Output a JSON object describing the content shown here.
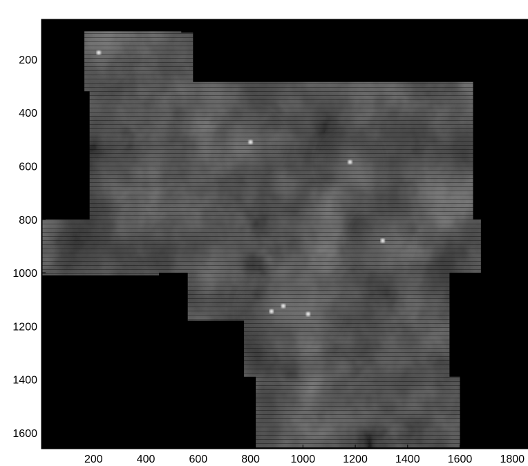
{
  "chart_data": {
    "type": "heatmap",
    "title": "",
    "xlabel": "",
    "ylabel": "",
    "colormap": "grayscale",
    "background_color": "#000000",
    "xlim": [
      1,
      1860
    ],
    "ylim": [
      1660,
      50
    ],
    "y_reversed": true,
    "x_ticks": [
      200,
      400,
      600,
      800,
      1000,
      1200,
      1400,
      1600,
      1800
    ],
    "y_ticks": [
      200,
      400,
      600,
      800,
      1000,
      1200,
      1400,
      1600
    ],
    "coverage_regions": [
      {
        "x": [
          165,
          535
        ],
        "y": [
          95,
          320
        ]
      },
      {
        "x": [
          535,
          580
        ],
        "y": [
          100,
          300
        ]
      },
      {
        "x": [
          185,
          1650
        ],
        "y": [
          285,
          800
        ]
      },
      {
        "x": [
          5,
          450
        ],
        "y": [
          800,
          1010
        ]
      },
      {
        "x": [
          450,
          1680
        ],
        "y": [
          800,
          1000
        ]
      },
      {
        "x": [
          560,
          1560
        ],
        "y": [
          1000,
          1180
        ]
      },
      {
        "x": [
          775,
          1560
        ],
        "y": [
          1180,
          1390
        ]
      },
      {
        "x": [
          820,
          1600
        ],
        "y": [
          1390,
          1655
        ]
      }
    ],
    "bright_sources": [
      {
        "x": 220,
        "y": 175
      },
      {
        "x": 800,
        "y": 510
      },
      {
        "x": 1180,
        "y": 585
      },
      {
        "x": 1305,
        "y": 880
      },
      {
        "x": 925,
        "y": 1125
      },
      {
        "x": 1020,
        "y": 1155
      },
      {
        "x": 880,
        "y": 1145
      }
    ]
  }
}
